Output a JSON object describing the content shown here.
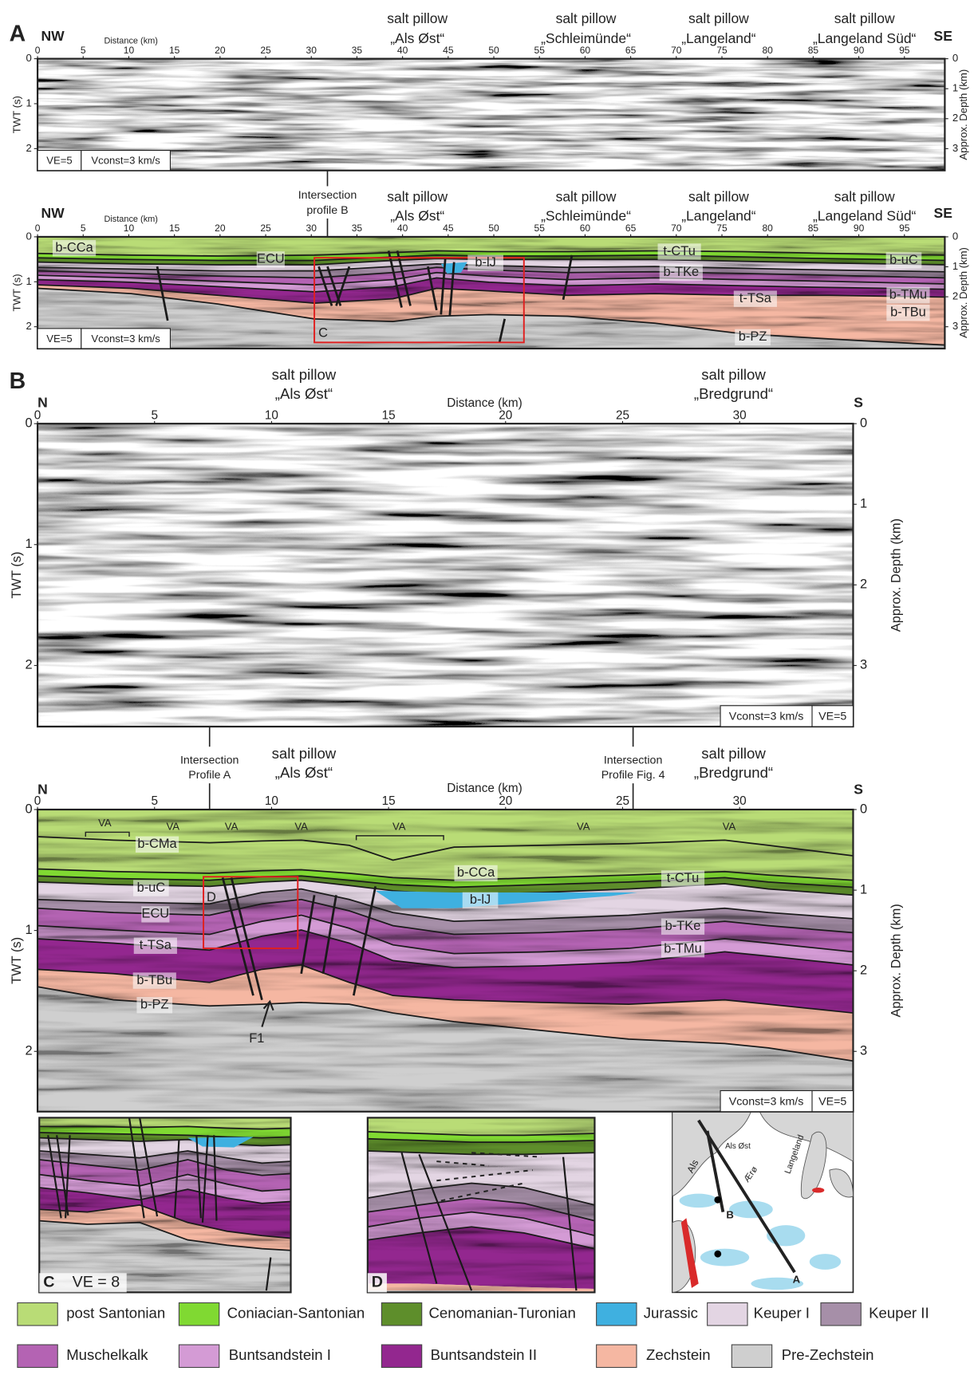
{
  "panel_a": {
    "label": "A",
    "left_end": "NW",
    "right_end": "SE",
    "distance_label": "Distance (km)",
    "distance_ticks": [
      0,
      5,
      10,
      15,
      20,
      25,
      30,
      35,
      40,
      45,
      50,
      55,
      60,
      65,
      70,
      75,
      80,
      85,
      90,
      95
    ],
    "twt_label": "TWT (s)",
    "twt_ticks": [
      0,
      1,
      2
    ],
    "depth_label": "Approx. Depth (km)",
    "depth_ticks": [
      0,
      1,
      2,
      3
    ],
    "salt_pillows": [
      {
        "title": "salt pillow",
        "name": "„Als Øst“"
      },
      {
        "title": "salt pillow",
        "name": "„Schleimünde“"
      },
      {
        "title": "salt pillow",
        "name": "„Langeland“"
      },
      {
        "title": "salt pillow",
        "name": "„Langeland Süd“"
      }
    ],
    "ve": "VE=5",
    "vconst": "Vconst=3 km/s",
    "intersection": {
      "line1": "Intersection",
      "line2": "profile B"
    },
    "horizons": [
      "b-CCa",
      "ECU",
      "b-lJ",
      "t-CTu",
      "b-TKe",
      "b-uC",
      "b-TMu",
      "t-TSa",
      "b-TBu",
      "b-PZ"
    ],
    "box_label": "C"
  },
  "panel_b": {
    "label": "B",
    "left_end": "N",
    "right_end": "S",
    "distance_label": "Distance (km)",
    "distance_ticks": [
      0,
      5,
      10,
      15,
      20,
      25,
      30
    ],
    "twt_label": "TWT (s)",
    "twt_ticks": [
      0,
      1,
      2
    ],
    "depth_label": "Approx. Depth (km)",
    "depth_ticks": [
      0,
      1,
      2,
      3
    ],
    "salt_pillows": [
      {
        "title": "salt pillow",
        "name": "„Als Øst“"
      },
      {
        "title": "salt pillow",
        "name": "„Bredgrund“"
      }
    ],
    "ve": "VE=5",
    "vconst": "Vconst=3 km/s",
    "intersections": [
      {
        "line1": "Intersection",
        "line2": "Profile A"
      },
      {
        "line1": "Intersection",
        "line2": "Profile Fig. 4"
      }
    ],
    "seismic_facies": [
      "VA",
      "VA",
      "VA",
      "VA",
      "VA",
      "VA",
      "VA"
    ],
    "horizons": [
      "b-CMa",
      "b-CCa",
      "t-CTu",
      "b-uC",
      "b-lJ",
      "ECU",
      "b-TKe",
      "t-TSa",
      "b-TMu",
      "b-TBu",
      "b-PZ"
    ],
    "box_label": "D",
    "fault_label": "F1"
  },
  "inset_c": {
    "label": "C",
    "ve": "VE = 8"
  },
  "inset_d": {
    "label": "D"
  },
  "map": {
    "labels": [
      "Als",
      "Als Øst",
      "Ærø",
      "Langeland",
      "B",
      "A"
    ]
  },
  "legend": [
    {
      "name": "post Santonian",
      "color": "#b9dc76"
    },
    {
      "name": "Coniacian-Santonian",
      "color": "#80d932"
    },
    {
      "name": "Cenomanian-Turonian",
      "color": "#5e8e2b"
    },
    {
      "name": "Jurassic",
      "color": "#3fb0e0"
    },
    {
      "name": "Keuper I",
      "color": "#e3d5e3"
    },
    {
      "name": "Keuper II",
      "color": "#a68fa8"
    },
    {
      "name": "Muschelkalk",
      "color": "#b463b3"
    },
    {
      "name": "Buntsandstein I",
      "color": "#d49bd5"
    },
    {
      "name": "Buntsandstein II",
      "color": "#93278f"
    },
    {
      "name": "Zechstein",
      "color": "#f5b7a2"
    },
    {
      "name": "Pre-Zechstein",
      "color": "#cfcfcf"
    }
  ]
}
